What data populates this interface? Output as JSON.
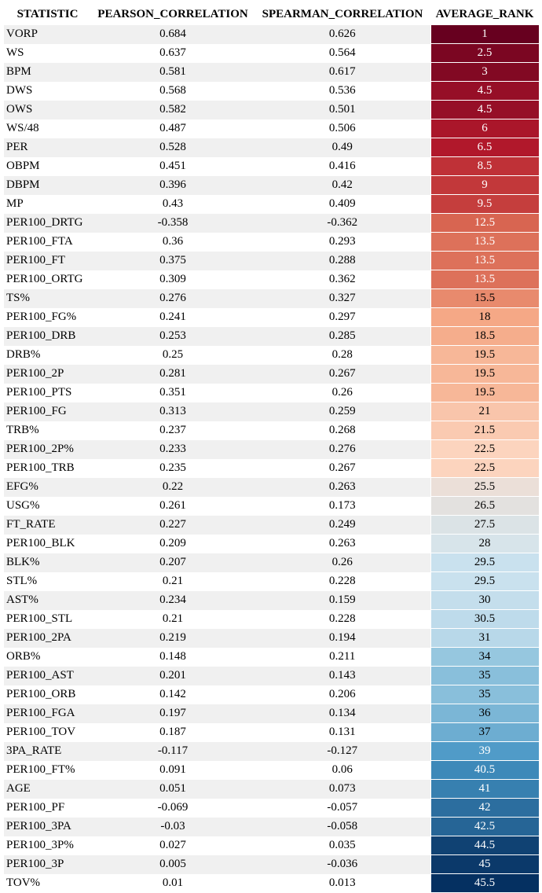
{
  "chart_data": {
    "type": "table",
    "columns": [
      "STATISTIC",
      "PEARSON_CORRELATION",
      "SPEARMAN_CORRELATION",
      "AVERAGE_RANK"
    ],
    "rows": [
      [
        "VORP",
        "0.684",
        "0.626",
        "1"
      ],
      [
        "WS",
        "0.637",
        "0.564",
        "2.5"
      ],
      [
        "BPM",
        "0.581",
        "0.617",
        "3"
      ],
      [
        "DWS",
        "0.568",
        "0.536",
        "4.5"
      ],
      [
        "OWS",
        "0.582",
        "0.501",
        "4.5"
      ],
      [
        "WS/48",
        "0.487",
        "0.506",
        "6"
      ],
      [
        "PER",
        "0.528",
        "0.49",
        "6.5"
      ],
      [
        "OBPM",
        "0.451",
        "0.416",
        "8.5"
      ],
      [
        "DBPM",
        "0.396",
        "0.42",
        "9"
      ],
      [
        "MP",
        "0.43",
        "0.409",
        "9.5"
      ],
      [
        "PER100_DRTG",
        "-0.358",
        "-0.362",
        "12.5"
      ],
      [
        "PER100_FTA",
        "0.36",
        "0.293",
        "13.5"
      ],
      [
        "PER100_FT",
        "0.375",
        "0.288",
        "13.5"
      ],
      [
        "PER100_ORTG",
        "0.309",
        "0.362",
        "13.5"
      ],
      [
        "TS%",
        "0.276",
        "0.327",
        "15.5"
      ],
      [
        "PER100_FG%",
        "0.241",
        "0.297",
        "18"
      ],
      [
        "PER100_DRB",
        "0.253",
        "0.285",
        "18.5"
      ],
      [
        "DRB%",
        "0.25",
        "0.28",
        "19.5"
      ],
      [
        "PER100_2P",
        "0.281",
        "0.267",
        "19.5"
      ],
      [
        "PER100_PTS",
        "0.351",
        "0.26",
        "19.5"
      ],
      [
        "PER100_FG",
        "0.313",
        "0.259",
        "21"
      ],
      [
        "TRB%",
        "0.237",
        "0.268",
        "21.5"
      ],
      [
        "PER100_2P%",
        "0.233",
        "0.276",
        "22.5"
      ],
      [
        "PER100_TRB",
        "0.235",
        "0.267",
        "22.5"
      ],
      [
        "EFG%",
        "0.22",
        "0.263",
        "25.5"
      ],
      [
        "USG%",
        "0.261",
        "0.173",
        "26.5"
      ],
      [
        "FT_RATE",
        "0.227",
        "0.249",
        "27.5"
      ],
      [
        "PER100_BLK",
        "0.209",
        "0.263",
        "28"
      ],
      [
        "BLK%",
        "0.207",
        "0.26",
        "29.5"
      ],
      [
        "STL%",
        "0.21",
        "0.228",
        "29.5"
      ],
      [
        "AST%",
        "0.234",
        "0.159",
        "30"
      ],
      [
        "PER100_STL",
        "0.21",
        "0.228",
        "30.5"
      ],
      [
        "PER100_2PA",
        "0.219",
        "0.194",
        "31"
      ],
      [
        "ORB%",
        "0.148",
        "0.211",
        "34"
      ],
      [
        "PER100_AST",
        "0.201",
        "0.143",
        "35"
      ],
      [
        "PER100_ORB",
        "0.142",
        "0.206",
        "35"
      ],
      [
        "PER100_FGA",
        "0.197",
        "0.134",
        "36"
      ],
      [
        "PER100_TOV",
        "0.187",
        "0.131",
        "37"
      ],
      [
        "3PA_RATE",
        "-0.117",
        "-0.127",
        "39"
      ],
      [
        "PER100_FT%",
        "0.091",
        "0.06",
        "40.5"
      ],
      [
        "AGE",
        "0.051",
        "0.073",
        "41"
      ],
      [
        "PER100_PF",
        "-0.069",
        "-0.057",
        "42"
      ],
      [
        "PER100_3PA",
        "-0.03",
        "-0.058",
        "42.5"
      ],
      [
        "PER100_3P%",
        "0.027",
        "0.035",
        "44.5"
      ],
      [
        "PER100_3P",
        "0.005",
        "-0.036",
        "45"
      ],
      [
        "TOV%",
        "0.01",
        "0.013",
        "45.5"
      ]
    ],
    "heatmap_column": "AVERAGE_RANK",
    "colormap": "RdBu",
    "color_range": [
      1,
      45.5
    ]
  }
}
